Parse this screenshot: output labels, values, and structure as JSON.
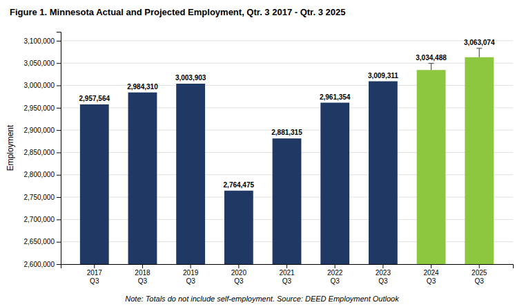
{
  "chart_data": {
    "type": "bar",
    "title": "Figure 1. Minnesota Actual and Projected Employment, Qtr. 3 2017 - Qtr. 3 2025",
    "categories": [
      "2017\nQ3",
      "2018\nQ3",
      "2019\nQ3",
      "2020\nQ3",
      "2021\nQ3",
      "2022\nQ3",
      "2023\nQ3",
      "2024\nQ3",
      "2025\nQ3"
    ],
    "values": [
      2957564,
      2984310,
      3003903,
      2764475,
      2881315,
      2961354,
      3009311,
      3034488,
      3063074
    ],
    "value_labels": [
      "2,957,564",
      "2,984,310",
      "3,003,903",
      "2,764,475",
      "2,881,315",
      "2,961,354",
      "3,009,311",
      "3,034,488",
      "3,063,074"
    ],
    "errors": [
      null,
      null,
      null,
      null,
      null,
      null,
      null,
      15000,
      20000
    ],
    "colors": [
      "#1F3864",
      "#1F3864",
      "#1F3864",
      "#1F3864",
      "#1F3864",
      "#1F3864",
      "#1F3864",
      "#8DC63F",
      "#8DC63F"
    ],
    "ylabel": "Employment",
    "note": "Note: Totals do not include self-employment. Source: DEED Employment Outlook",
    "ylim": [
      2600000,
      3120000
    ],
    "yticks": [
      {
        "value": 2600000,
        "label": "2,600,000"
      },
      {
        "value": 2650000,
        "label": "2,650,000"
      },
      {
        "value": 2700000,
        "label": "2,700,000"
      },
      {
        "value": 2750000,
        "label": "2,750,000"
      },
      {
        "value": 2800000,
        "label": "2,800,000"
      },
      {
        "value": 2850000,
        "label": "2,850,000"
      },
      {
        "value": 2900000,
        "label": "2,900,000"
      },
      {
        "value": 2950000,
        "label": "2,950,000"
      },
      {
        "value": 3000000,
        "label": "3,000,000"
      },
      {
        "value": 3050000,
        "label": "3,050,000"
      },
      {
        "value": 3100000,
        "label": "3,100,000"
      }
    ],
    "grid": true,
    "data_labels": true
  }
}
